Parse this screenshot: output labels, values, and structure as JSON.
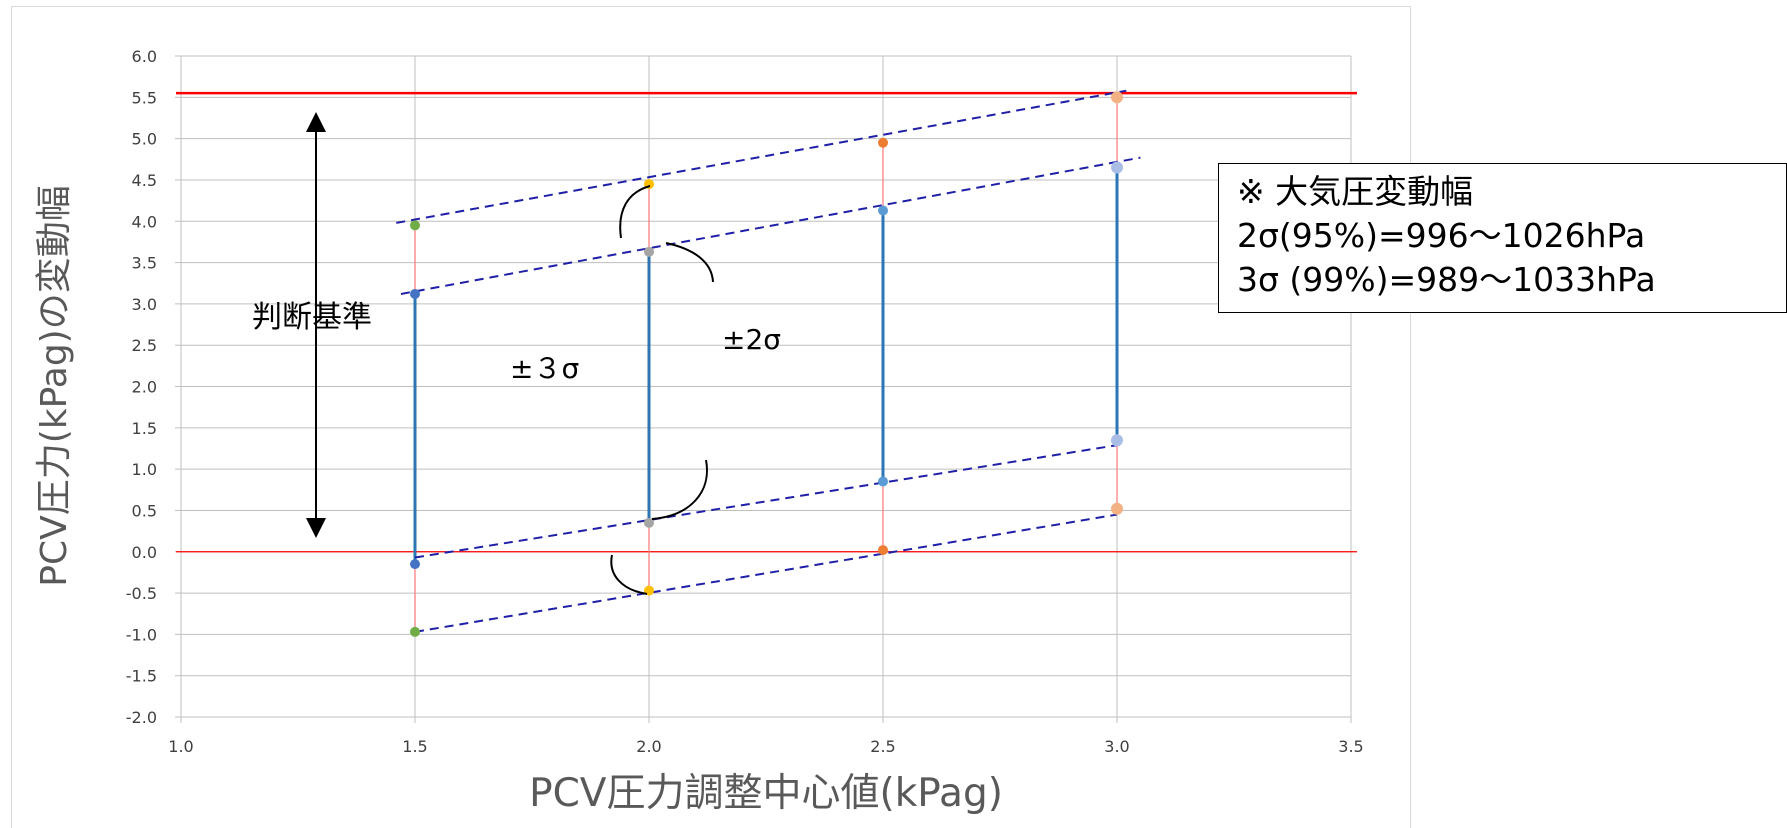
{
  "chart_data": {
    "type": "scatter",
    "xlabel": "PCV圧力調整中心値(kPag)",
    "ylabel": "PCV圧力(kPag)の変動幅",
    "xlim": [
      1.0,
      3.5
    ],
    "ylim": [
      -2.0,
      6.0
    ],
    "x_ticks": [
      "1.0",
      "1.5",
      "2.0",
      "2.5",
      "3.0",
      "3.5"
    ],
    "y_ticks": [
      "-2.0",
      "-1.5",
      "-1.0",
      "-0.5",
      "0.0",
      "0.5",
      "1.0",
      "1.5",
      "2.0",
      "2.5",
      "3.0",
      "3.5",
      "4.0",
      "4.5",
      "5.0",
      "5.5",
      "6.0"
    ],
    "grid": true,
    "criterion_upper": 5.55,
    "criterion_lower": 0.0,
    "series": [
      {
        "color": "#70ad47",
        "x": [
          1.5,
          1.5
        ],
        "y": [
          3.95,
          -0.97
        ]
      },
      {
        "color": "#4472c4",
        "x": [
          1.5,
          1.5
        ],
        "y": [
          3.12,
          -0.15
        ]
      },
      {
        "color": "#ffc000",
        "x": [
          2.0,
          2.0
        ],
        "y": [
          4.45,
          -0.47
        ]
      },
      {
        "color": "#a5a5a5",
        "x": [
          2.0,
          2.0
        ],
        "y": [
          3.63,
          0.35
        ]
      },
      {
        "color": "#ed7d31",
        "x": [
          2.5,
          2.5
        ],
        "y": [
          4.95,
          0.02
        ]
      },
      {
        "color": "#5b9bd5",
        "x": [
          2.5,
          2.5
        ],
        "y": [
          4.13,
          0.85
        ]
      },
      {
        "color": "#f4b183",
        "x": [
          3.0,
          3.0
        ],
        "y": [
          5.5,
          0.52
        ]
      },
      {
        "color": "#a9bde6",
        "x": [
          3.0,
          3.0
        ],
        "y": [
          4.65,
          1.35
        ]
      }
    ],
    "trend_lines": [
      {
        "name": "upper-3sigma",
        "x": [
          1.46,
          3.02
        ],
        "y": [
          3.98,
          5.58
        ]
      },
      {
        "name": "upper-2sigma",
        "x": [
          1.47,
          3.05
        ],
        "y": [
          3.12,
          4.77
        ]
      },
      {
        "name": "lower-2sigma",
        "x": [
          1.5,
          3.0
        ],
        "y": [
          -0.07,
          1.29
        ]
      },
      {
        "name": "lower-3sigma",
        "x": [
          1.5,
          3.0
        ],
        "y": [
          -0.97,
          0.45
        ]
      }
    ],
    "annotations": {
      "criterion": "判断基準",
      "pm3sigma": "±３σ",
      "pm2sigma": "±2σ"
    },
    "colors": {
      "grid": "#bfbfbf",
      "criterion_line": "#ff0000",
      "trend": "#1f1fa8",
      "range_3sigma": "#ff7f7f",
      "range_2sigma": "#2e75b6"
    }
  },
  "note": {
    "line1": "※ 大気圧変動幅",
    "line2": "2σ(95%)=996～1026hPa",
    "line3": "3σ (99%)=989～1033hPa"
  }
}
